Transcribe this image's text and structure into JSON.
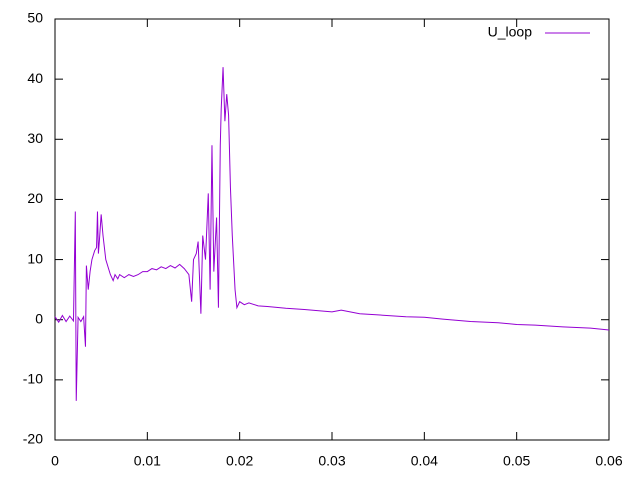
{
  "chart_data": {
    "type": "line",
    "x": [
      0,
      0.0004,
      0.0008,
      0.0012,
      0.0016,
      0.002,
      0.0022,
      0.0023,
      0.0025,
      0.0028,
      0.0031,
      0.0033,
      0.0034,
      0.0036,
      0.0038,
      0.004,
      0.0043,
      0.0045,
      0.0046,
      0.0047,
      0.0048,
      0.005,
      0.0052,
      0.0055,
      0.0058,
      0.006,
      0.0063,
      0.0065,
      0.0068,
      0.007,
      0.0075,
      0.008,
      0.0085,
      0.009,
      0.0095,
      0.01,
      0.0105,
      0.011,
      0.0115,
      0.012,
      0.0125,
      0.013,
      0.0135,
      0.014,
      0.0145,
      0.0148,
      0.015,
      0.0153,
      0.0155,
      0.0158,
      0.016,
      0.0163,
      0.0166,
      0.0168,
      0.017,
      0.0172,
      0.0175,
      0.0177,
      0.0179,
      0.018,
      0.0182,
      0.0184,
      0.0186,
      0.0188,
      0.019,
      0.0192,
      0.0195,
      0.0197,
      0.02,
      0.0205,
      0.021,
      0.022,
      0.023,
      0.025,
      0.027,
      0.03,
      0.031,
      0.033,
      0.035,
      0.038,
      0.04,
      0.042,
      0.045,
      0.048,
      0.05,
      0.052,
      0.055,
      0.058,
      0.06
    ],
    "series": [
      {
        "name": "U_loop",
        "color": "#9400d3",
        "values": [
          0.5,
          -0.4,
          0.7,
          -0.3,
          0.6,
          -0.2,
          18,
          -13.5,
          0.4,
          -0.3,
          0.5,
          -4.5,
          9,
          5,
          8,
          10,
          11.5,
          12,
          18,
          11,
          13,
          17.5,
          14,
          10,
          8.5,
          7.5,
          6.5,
          7.5,
          6.8,
          7.5,
          7,
          7.5,
          7.2,
          7.5,
          8,
          8,
          8.5,
          8.3,
          8.8,
          8.5,
          9,
          8.6,
          9.2,
          8.5,
          7.5,
          3,
          10,
          11,
          13,
          1,
          14,
          10,
          21,
          5,
          29,
          8,
          17,
          2,
          29,
          35,
          42,
          33,
          37.5,
          34,
          22,
          14,
          5,
          2,
          3,
          2.5,
          2.8,
          2.3,
          2.2,
          1.9,
          1.7,
          1.3,
          1.6,
          1.0,
          0.8,
          0.5,
          0.4,
          0.1,
          -0.3,
          -0.5,
          -0.8,
          -0.9,
          -1.2,
          -1.4,
          -1.7
        ]
      }
    ],
    "xlim": [
      0,
      0.06
    ],
    "xticks": [
      0,
      0.01,
      0.02,
      0.03,
      0.04,
      0.05,
      0.06
    ],
    "ylim": [
      -20,
      50
    ],
    "yticks": [
      -20,
      -10,
      0,
      10,
      20,
      30,
      40,
      50
    ],
    "legend": "top-right"
  }
}
